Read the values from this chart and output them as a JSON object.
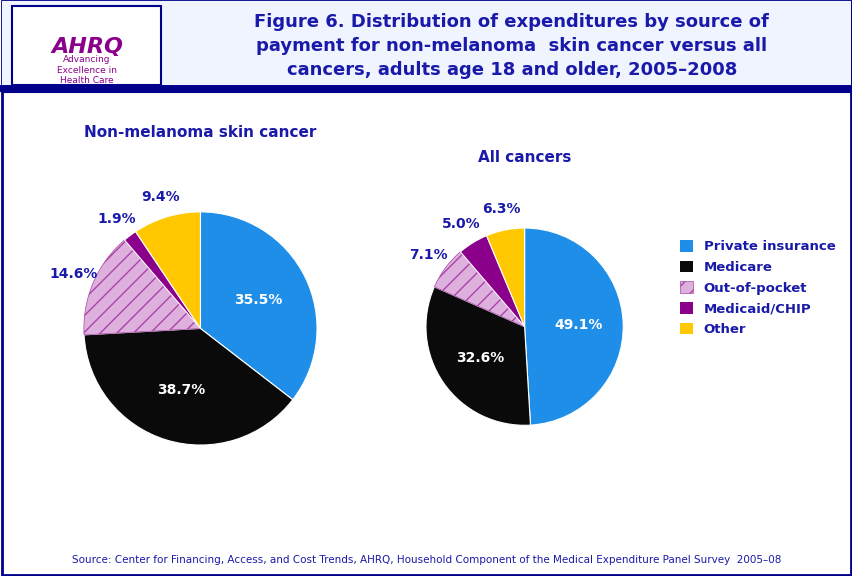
{
  "title": "Figure 6. Distribution of expenditures by source of\npayment for non-melanoma  skin cancer versus all\ncancers, adults age 18 and older, 2005–2008",
  "title_color": "#1a1aaa",
  "background_color": "#ffffff",
  "chart1_title": "Non-melanoma skin cancer",
  "chart2_title": "All cancers",
  "categories": [
    "Private insurance",
    "Medicare",
    "Out-of-pocket",
    "Medicaid/CHIP",
    "Other"
  ],
  "colors": [
    "#1e8ee8",
    "#0a0a0a",
    "#d4a0d4",
    "#8b008b",
    "#ffc800"
  ],
  "oop_hatch_color": "#aa44aa",
  "chart1_values": [
    35.5,
    38.7,
    14.6,
    1.9,
    9.4
  ],
  "chart2_values": [
    49.1,
    32.6,
    7.1,
    5.0,
    6.3
  ],
  "chart1_labels": [
    "35.5%",
    "38.7%",
    "14.6%",
    "1.9%",
    "9.4%"
  ],
  "chart2_labels": [
    "49.1%",
    "32.6%",
    "7.1%",
    "5.0%",
    "6.3%"
  ],
  "chart1_label_inside": [
    true,
    true,
    false,
    false,
    false
  ],
  "chart2_label_inside": [
    true,
    true,
    false,
    false,
    false
  ],
  "source_text": "Source: Center for Financing, Access, and Cost Trends, AHRQ, Household Component of the Medical Expenditure Panel Survey  2005–08",
  "legend_labels": [
    "Private insurance",
    "Medicare",
    "Out-of-pocket",
    "Medicaid/CHIP",
    "Other"
  ],
  "border_color": "#00008b",
  "header_line_color": "#00008b",
  "label_color": "#1a1aaa",
  "source_color": "#1a1aaa",
  "startangle1": 90,
  "startangle2": 90
}
